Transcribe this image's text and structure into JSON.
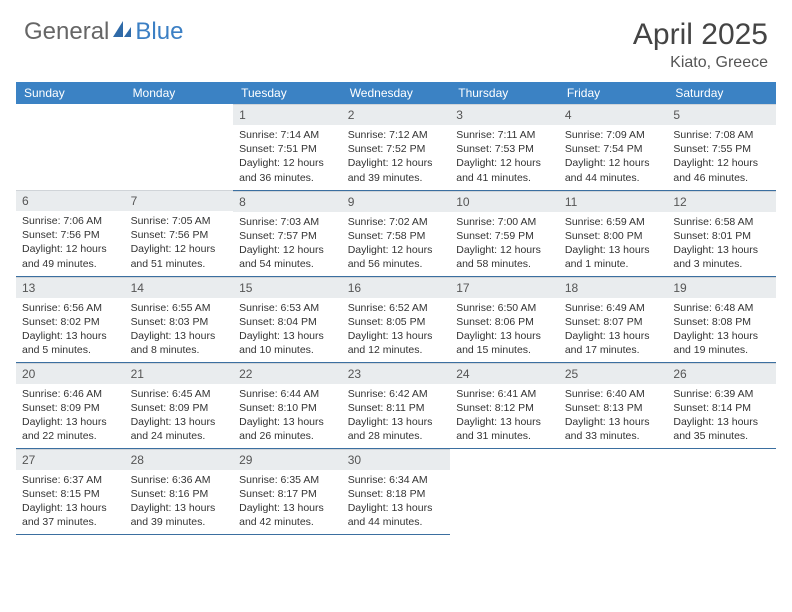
{
  "logo": {
    "part1": "General",
    "part2": "Blue"
  },
  "title": "April 2025",
  "location": "Kiato, Greece",
  "colors": {
    "header_bg": "#3b82c4",
    "header_text": "#ffffff",
    "daynum_bg": "#e9ecee",
    "border": "#3b6fa0",
    "logo_blue": "#3b7fc4"
  },
  "daysOfWeek": [
    "Sunday",
    "Monday",
    "Tuesday",
    "Wednesday",
    "Thursday",
    "Friday",
    "Saturday"
  ],
  "weeks": [
    [
      null,
      null,
      {
        "n": "1",
        "sr": "Sunrise: 7:14 AM",
        "ss": "Sunset: 7:51 PM",
        "d1": "Daylight: 12 hours",
        "d2": "and 36 minutes."
      },
      {
        "n": "2",
        "sr": "Sunrise: 7:12 AM",
        "ss": "Sunset: 7:52 PM",
        "d1": "Daylight: 12 hours",
        "d2": "and 39 minutes."
      },
      {
        "n": "3",
        "sr": "Sunrise: 7:11 AM",
        "ss": "Sunset: 7:53 PM",
        "d1": "Daylight: 12 hours",
        "d2": "and 41 minutes."
      },
      {
        "n": "4",
        "sr": "Sunrise: 7:09 AM",
        "ss": "Sunset: 7:54 PM",
        "d1": "Daylight: 12 hours",
        "d2": "and 44 minutes."
      },
      {
        "n": "5",
        "sr": "Sunrise: 7:08 AM",
        "ss": "Sunset: 7:55 PM",
        "d1": "Daylight: 12 hours",
        "d2": "and 46 minutes."
      }
    ],
    [
      {
        "n": "6",
        "sr": "Sunrise: 7:06 AM",
        "ss": "Sunset: 7:56 PM",
        "d1": "Daylight: 12 hours",
        "d2": "and 49 minutes."
      },
      {
        "n": "7",
        "sr": "Sunrise: 7:05 AM",
        "ss": "Sunset: 7:56 PM",
        "d1": "Daylight: 12 hours",
        "d2": "and 51 minutes."
      },
      {
        "n": "8",
        "sr": "Sunrise: 7:03 AM",
        "ss": "Sunset: 7:57 PM",
        "d1": "Daylight: 12 hours",
        "d2": "and 54 minutes."
      },
      {
        "n": "9",
        "sr": "Sunrise: 7:02 AM",
        "ss": "Sunset: 7:58 PM",
        "d1": "Daylight: 12 hours",
        "d2": "and 56 minutes."
      },
      {
        "n": "10",
        "sr": "Sunrise: 7:00 AM",
        "ss": "Sunset: 7:59 PM",
        "d1": "Daylight: 12 hours",
        "d2": "and 58 minutes."
      },
      {
        "n": "11",
        "sr": "Sunrise: 6:59 AM",
        "ss": "Sunset: 8:00 PM",
        "d1": "Daylight: 13 hours",
        "d2": "and 1 minute."
      },
      {
        "n": "12",
        "sr": "Sunrise: 6:58 AM",
        "ss": "Sunset: 8:01 PM",
        "d1": "Daylight: 13 hours",
        "d2": "and 3 minutes."
      }
    ],
    [
      {
        "n": "13",
        "sr": "Sunrise: 6:56 AM",
        "ss": "Sunset: 8:02 PM",
        "d1": "Daylight: 13 hours",
        "d2": "and 5 minutes."
      },
      {
        "n": "14",
        "sr": "Sunrise: 6:55 AM",
        "ss": "Sunset: 8:03 PM",
        "d1": "Daylight: 13 hours",
        "d2": "and 8 minutes."
      },
      {
        "n": "15",
        "sr": "Sunrise: 6:53 AM",
        "ss": "Sunset: 8:04 PM",
        "d1": "Daylight: 13 hours",
        "d2": "and 10 minutes."
      },
      {
        "n": "16",
        "sr": "Sunrise: 6:52 AM",
        "ss": "Sunset: 8:05 PM",
        "d1": "Daylight: 13 hours",
        "d2": "and 12 minutes."
      },
      {
        "n": "17",
        "sr": "Sunrise: 6:50 AM",
        "ss": "Sunset: 8:06 PM",
        "d1": "Daylight: 13 hours",
        "d2": "and 15 minutes."
      },
      {
        "n": "18",
        "sr": "Sunrise: 6:49 AM",
        "ss": "Sunset: 8:07 PM",
        "d1": "Daylight: 13 hours",
        "d2": "and 17 minutes."
      },
      {
        "n": "19",
        "sr": "Sunrise: 6:48 AM",
        "ss": "Sunset: 8:08 PM",
        "d1": "Daylight: 13 hours",
        "d2": "and 19 minutes."
      }
    ],
    [
      {
        "n": "20",
        "sr": "Sunrise: 6:46 AM",
        "ss": "Sunset: 8:09 PM",
        "d1": "Daylight: 13 hours",
        "d2": "and 22 minutes."
      },
      {
        "n": "21",
        "sr": "Sunrise: 6:45 AM",
        "ss": "Sunset: 8:09 PM",
        "d1": "Daylight: 13 hours",
        "d2": "and 24 minutes."
      },
      {
        "n": "22",
        "sr": "Sunrise: 6:44 AM",
        "ss": "Sunset: 8:10 PM",
        "d1": "Daylight: 13 hours",
        "d2": "and 26 minutes."
      },
      {
        "n": "23",
        "sr": "Sunrise: 6:42 AM",
        "ss": "Sunset: 8:11 PM",
        "d1": "Daylight: 13 hours",
        "d2": "and 28 minutes."
      },
      {
        "n": "24",
        "sr": "Sunrise: 6:41 AM",
        "ss": "Sunset: 8:12 PM",
        "d1": "Daylight: 13 hours",
        "d2": "and 31 minutes."
      },
      {
        "n": "25",
        "sr": "Sunrise: 6:40 AM",
        "ss": "Sunset: 8:13 PM",
        "d1": "Daylight: 13 hours",
        "d2": "and 33 minutes."
      },
      {
        "n": "26",
        "sr": "Sunrise: 6:39 AM",
        "ss": "Sunset: 8:14 PM",
        "d1": "Daylight: 13 hours",
        "d2": "and 35 minutes."
      }
    ],
    [
      {
        "n": "27",
        "sr": "Sunrise: 6:37 AM",
        "ss": "Sunset: 8:15 PM",
        "d1": "Daylight: 13 hours",
        "d2": "and 37 minutes."
      },
      {
        "n": "28",
        "sr": "Sunrise: 6:36 AM",
        "ss": "Sunset: 8:16 PM",
        "d1": "Daylight: 13 hours",
        "d2": "and 39 minutes."
      },
      {
        "n": "29",
        "sr": "Sunrise: 6:35 AM",
        "ss": "Sunset: 8:17 PM",
        "d1": "Daylight: 13 hours",
        "d2": "and 42 minutes."
      },
      {
        "n": "30",
        "sr": "Sunrise: 6:34 AM",
        "ss": "Sunset: 8:18 PM",
        "d1": "Daylight: 13 hours",
        "d2": "and 44 minutes."
      },
      null,
      null,
      null
    ]
  ]
}
